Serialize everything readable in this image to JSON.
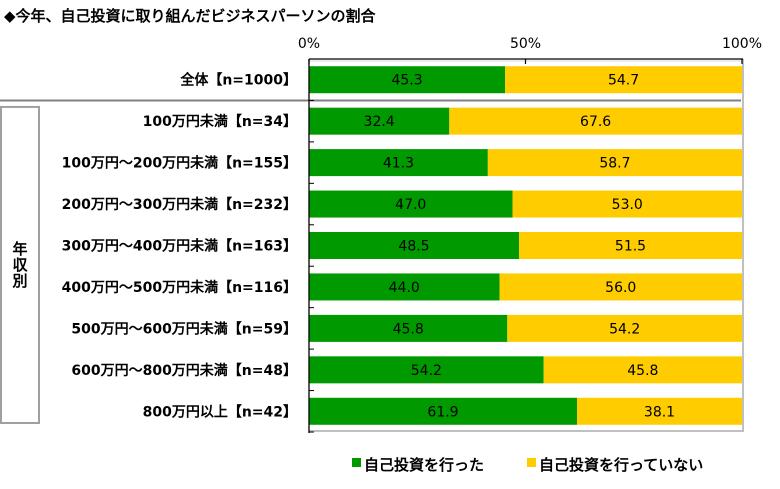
{
  "chart_data": {
    "type": "bar",
    "orientation": "horizontal",
    "stacking": "percent",
    "title": "◆今年、自己投資に取り組んだビジネスパーソンの割合",
    "categories": [
      "全体【n=1000】",
      "100万円未満【n=34】",
      "100万円～200万円未満【n=155】",
      "200万円～300万円未満【n=232】",
      "300万円～400万円未満【n=163】",
      "400万円～500万円未満【n=116】",
      "500万円～600万円未満【n=59】",
      "600万円～800万円未満【n=48】",
      "800万円以上【n=42】"
    ],
    "category_groups": [
      {
        "label": "年収別",
        "first_index": 1,
        "last_index": 8
      }
    ],
    "series": [
      {
        "key": "done",
        "name": "自己投資を行った",
        "color": "#009900",
        "values": [
          45.3,
          32.4,
          41.3,
          47.0,
          48.5,
          44.0,
          45.8,
          54.2,
          61.9
        ],
        "labels": [
          "45.3",
          "32.4",
          "41.3",
          "47.0",
          "48.5",
          "44.0",
          "45.8",
          "54.2",
          "61.9"
        ]
      },
      {
        "key": "not-done",
        "name": "自己投資を行っていない",
        "color": "#FFCC00",
        "values": [
          54.7,
          67.6,
          58.7,
          53.0,
          51.5,
          56.0,
          54.2,
          45.8,
          38.1
        ],
        "labels": [
          "54.7",
          "67.6",
          "58.7",
          "53.0",
          "51.5",
          "56.0",
          "54.2",
          "45.8",
          "38.1"
        ]
      }
    ],
    "x_axis": {
      "position": "top",
      "range": [
        0,
        100
      ],
      "tick_values": [
        0,
        50,
        100
      ],
      "tick_labels": [
        "0%",
        "50%",
        "100%"
      ],
      "label": ""
    },
    "y_axis": {
      "label": ""
    },
    "grid": false,
    "legend": {
      "position": "bottom"
    },
    "data_labels": true
  }
}
